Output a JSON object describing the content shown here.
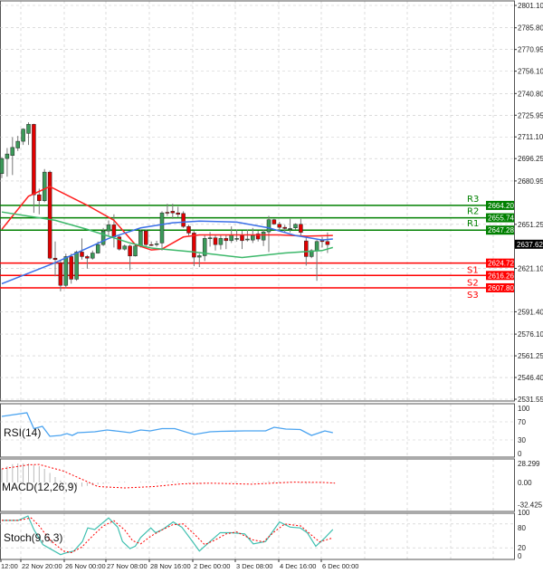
{
  "chart_data": [
    {
      "type": "candlestick",
      "panel": "price",
      "ylim": [
        2531.55,
        2801.1
      ],
      "y_ticks": [
        "2801.10",
        "2785.80",
        "2770.95",
        "2756.10",
        "2740.80",
        "2725.95",
        "2711.10",
        "2696.25",
        "2680.95",
        "2651.25",
        "2621.10",
        "2591.40",
        "2576.10",
        "2561.25",
        "2546.40",
        "2531.55"
      ],
      "grid": true,
      "candles_ohlc": [
        [
          2686.0,
          2697.3,
          2682.9,
          2696.3
        ],
        [
          2696.3,
          2703.5,
          2683.9,
          2699.4
        ],
        [
          2698.4,
          2710.8,
          2685.0,
          2703.9
        ],
        [
          2703.5,
          2711.8,
          2701.5,
          2708.1
        ],
        [
          2708.1,
          2717.0,
          2705.6,
          2716.4
        ],
        [
          2713.5,
          2721.1,
          2705.6,
          2719.7
        ],
        [
          2719.7,
          2720.1,
          2659.1,
          2671.5
        ],
        [
          2671.5,
          2675.7,
          2658.1,
          2667.4
        ],
        [
          2667.4,
          2689.1,
          2666.4,
          2687.0
        ],
        [
          2687.0,
          2688.1,
          2627.1,
          2628.1
        ],
        [
          2628.1,
          2639.5,
          2615.7,
          2627.1
        ],
        [
          2625.0,
          2626.1,
          2605.4,
          2609.5
        ],
        [
          2609.5,
          2631.2,
          2607.5,
          2629.2
        ],
        [
          2629.2,
          2631.2,
          2610.6,
          2613.7
        ],
        [
          2613.7,
          2633.3,
          2612.6,
          2632.3
        ],
        [
          2632.3,
          2641.6,
          2627.1,
          2629.2
        ],
        [
          2629.2,
          2630.2,
          2620.9,
          2628.1
        ],
        [
          2628.1,
          2633.3,
          2627.1,
          2631.6
        ],
        [
          2631.6,
          2639.5,
          2631.2,
          2637.4
        ],
        [
          2637.4,
          2648.8,
          2636.4,
          2646.7
        ],
        [
          2646.7,
          2653.9,
          2643.6,
          2650.9
        ],
        [
          2650.9,
          2658.1,
          2635.4,
          2642.6
        ],
        [
          2642.6,
          2643.6,
          2633.3,
          2634.3
        ],
        [
          2634.3,
          2637.4,
          2633.3,
          2636.4
        ],
        [
          2636.4,
          2637.4,
          2619.9,
          2629.6
        ],
        [
          2629.6,
          2637.4,
          2629.2,
          2636.4
        ],
        [
          2636.4,
          2647.8,
          2635.4,
          2646.7
        ],
        [
          2646.7,
          2647.8,
          2636.4,
          2637.4
        ],
        [
          2637.4,
          2639.5,
          2636.4,
          2637.0
        ],
        [
          2638.0,
          2640.0,
          2636.0,
          2638.0
        ],
        [
          2638.5,
          2660.2,
          2633.3,
          2659.1
        ],
        [
          2659.5,
          2665.3,
          2657.0,
          2659.1
        ],
        [
          2660.2,
          2665.3,
          2655.0,
          2659.1
        ],
        [
          2659.1,
          2663.3,
          2656.0,
          2658.1
        ],
        [
          2658.7,
          2660.2,
          2648.8,
          2649.8
        ],
        [
          2649.8,
          2650.9,
          2643.6,
          2645.3
        ],
        [
          2645.3,
          2646.7,
          2622.6,
          2628.8
        ],
        [
          2628.8,
          2631.2,
          2622.0,
          2629.8
        ],
        [
          2629.8,
          2643.6,
          2626.1,
          2641.6
        ],
        [
          2642.0,
          2646.0,
          2636.0,
          2642.0
        ],
        [
          2642.0,
          2643.6,
          2633.3,
          2637.4
        ],
        [
          2637.4,
          2643.6,
          2634.0,
          2641.6
        ],
        [
          2641.6,
          2643.6,
          2634.3,
          2640.1
        ],
        [
          2640.1,
          2649.8,
          2638.5,
          2644.0
        ],
        [
          2641.6,
          2647.8,
          2639.5,
          2641.6
        ],
        [
          2643.6,
          2646.7,
          2634.3,
          2640.1
        ],
        [
          2641.2,
          2647.8,
          2639.5,
          2641.2
        ],
        [
          2640.5,
          2648.8,
          2638.5,
          2643.6
        ],
        [
          2644.7,
          2646.7,
          2639.5,
          2641.2
        ],
        [
          2640.5,
          2647.8,
          2636.4,
          2646.1
        ],
        [
          2646.1,
          2657.0,
          2632.3,
          2654.4
        ],
        [
          2654.4,
          2655.0,
          2650.9,
          2651.5
        ],
        [
          2651.3,
          2653.0,
          2647.0,
          2649.2
        ],
        [
          2649.2,
          2650.9,
          2645.7,
          2648.4
        ],
        [
          2648.4,
          2655.0,
          2645.7,
          2648.4
        ],
        [
          2648.8,
          2651.9,
          2647.8,
          2651.3
        ],
        [
          2651.3,
          2655.0,
          2643.6,
          2645.7
        ],
        [
          2639.9,
          2642.6,
          2623.0,
          2629.2
        ],
        [
          2629.2,
          2634.3,
          2628.1,
          2633.3
        ],
        [
          2633.3,
          2640.5,
          2612.6,
          2639.5
        ],
        [
          2640.1,
          2642.6,
          2635.4,
          2639.5
        ],
        [
          2639.5,
          2645.7,
          2631.6,
          2637.4
        ]
      ],
      "moving_averages": [
        {
          "color": "#ff2020",
          "points": [
            [
              0,
              2647.8
            ],
            [
              5,
              2670.5
            ],
            [
              9,
              2677.1
            ],
            [
              16,
              2664.3
            ],
            [
              21,
              2654.0
            ],
            [
              25,
              2637.4
            ],
            [
              28,
              2633.7
            ],
            [
              30,
              2634.3
            ],
            [
              34,
              2642.6
            ],
            [
              37,
              2644.0
            ],
            [
              45,
              2644.0
            ],
            [
              52,
              2644.0
            ],
            [
              57,
              2643.2
            ],
            [
              62,
              2643.6
            ]
          ]
        },
        {
          "color": "#3a6fe8",
          "points": [
            [
              0,
              2610.6
            ],
            [
              10,
              2625.0
            ],
            [
              20,
              2641.6
            ],
            [
              26,
              2648.8
            ],
            [
              32,
              2652.3
            ],
            [
              37,
              2653.5
            ],
            [
              44,
              2652.8
            ],
            [
              50,
              2648.8
            ],
            [
              55,
              2643.6
            ],
            [
              60,
              2640.5
            ],
            [
              62,
              2641.2
            ]
          ]
        },
        {
          "color": "#3cb86a",
          "points": [
            [
              0,
              2659.7
            ],
            [
              10,
              2654.0
            ],
            [
              16,
              2647.8
            ],
            [
              24,
              2638.5
            ],
            [
              28,
              2635.0
            ],
            [
              36,
              2632.3
            ],
            [
              45,
              2628.5
            ],
            [
              53,
              2631.6
            ],
            [
              60,
              2633.3
            ],
            [
              62,
              2635.4
            ]
          ]
        }
      ],
      "levels": [
        {
          "label": "R3",
          "value": "2664.20",
          "color": "#008000"
        },
        {
          "label": "R2",
          "value": "2655.74",
          "color": "#008000"
        },
        {
          "label": "R1",
          "value": "2647.28",
          "color": "#008000"
        },
        {
          "label": "S1",
          "value": "2624.72",
          "color": "#ff0000"
        },
        {
          "label": "S2",
          "value": "2616.26",
          "color": "#ff0000"
        },
        {
          "label": "S3",
          "value": "2607.80",
          "color": "#ff0000"
        }
      ],
      "current_price": "2637.62",
      "x_ticks": [
        "12:00",
        "22 Nov 20:00",
        "26 Nov 00:00",
        "27 Nov 08:00",
        "28 Nov 16:00",
        "2 Dec 00:00",
        "3 Dec 08:00",
        "4 Dec 16:00",
        "6 Dec 00:00"
      ]
    },
    {
      "type": "line",
      "panel": "rsi",
      "title": "RSI(14)",
      "ylim": [
        0,
        100
      ],
      "y_ticks": [
        "100",
        "70",
        "30",
        "0"
      ],
      "color": "#4aa3f0",
      "points": [
        [
          0,
          82
        ],
        [
          4.7,
          90
        ],
        [
          6,
          55
        ],
        [
          7.6,
          60
        ],
        [
          9,
          38
        ],
        [
          11,
          40
        ],
        [
          12.2,
          44
        ],
        [
          13.2,
          40
        ],
        [
          14.2,
          46
        ],
        [
          17.4,
          48
        ],
        [
          19.7,
          52
        ],
        [
          22,
          49
        ],
        [
          24,
          46
        ],
        [
          26,
          52
        ],
        [
          27.8,
          50
        ],
        [
          30,
          55
        ],
        [
          32.4,
          55
        ],
        [
          36,
          42
        ],
        [
          39,
          48
        ],
        [
          41,
          49
        ],
        [
          45.5,
          50
        ],
        [
          49.4,
          50
        ],
        [
          51,
          58
        ],
        [
          53.2,
          54
        ],
        [
          55.9,
          53
        ],
        [
          58,
          40
        ],
        [
          60.5,
          50
        ],
        [
          62,
          46
        ]
      ]
    },
    {
      "type": "line",
      "panel": "macd",
      "title": "MACD(12,26,9)",
      "ylim": [
        -32.425,
        28.299
      ],
      "y_ticks": [
        "28.299",
        "0.00",
        "-32.425"
      ],
      "histogram": [
        20,
        24,
        27,
        28,
        28,
        28,
        26,
        24,
        20,
        14,
        8,
        3,
        -3,
        -5,
        -6,
        -6,
        -5,
        -4,
        -3,
        -2,
        -1,
        0,
        1,
        1,
        0,
        0,
        1,
        1,
        0,
        -1,
        1,
        2,
        2,
        1,
        0,
        -1,
        -2,
        -2,
        -1,
        0,
        0,
        0,
        0,
        1,
        1,
        0,
        0,
        1,
        1,
        1,
        2,
        2,
        1,
        1,
        1,
        0,
        -1,
        -2,
        -1,
        0,
        0,
        -1,
        -1
      ],
      "signal_color": "#ff0000",
      "signal": [
        [
          0,
          20
        ],
        [
          5,
          26
        ],
        [
          7,
          26.5
        ],
        [
          11.5,
          17
        ],
        [
          15.5,
          3
        ],
        [
          18,
          -6
        ],
        [
          23,
          -8
        ],
        [
          28.5,
          -6
        ],
        [
          33.7,
          -2
        ],
        [
          39,
          -1
        ],
        [
          46.8,
          -2.5
        ],
        [
          54.6,
          0.5
        ],
        [
          60.5,
          0
        ],
        [
          62.4,
          -1
        ]
      ]
    },
    {
      "type": "line",
      "panel": "stoch",
      "title": "Stoch(9,6,3)",
      "ylim": [
        0,
        100
      ],
      "y_ticks": [
        "100",
        "80",
        "20",
        "0"
      ],
      "main_color": "#40c0b0",
      "signal_color": "#ff0000",
      "main": [
        [
          0,
          89
        ],
        [
          3.1,
          89
        ],
        [
          4.9,
          100
        ],
        [
          6,
          66
        ],
        [
          7.7,
          28
        ],
        [
          11,
          3
        ],
        [
          12.2,
          8
        ],
        [
          13.5,
          12
        ],
        [
          15.1,
          36
        ],
        [
          16.1,
          70
        ],
        [
          17.4,
          66
        ],
        [
          20,
          95
        ],
        [
          21.7,
          72
        ],
        [
          22.6,
          36
        ],
        [
          24,
          18
        ],
        [
          25,
          24
        ],
        [
          26,
          46
        ],
        [
          27.9,
          70
        ],
        [
          28.8,
          58
        ],
        [
          30.1,
          66
        ],
        [
          32.1,
          85
        ],
        [
          33.7,
          72
        ],
        [
          35.7,
          36
        ],
        [
          37,
          12
        ],
        [
          39,
          36
        ],
        [
          40.9,
          58
        ],
        [
          42.9,
          58
        ],
        [
          45.5,
          55
        ],
        [
          47.1,
          30
        ],
        [
          49.4,
          36
        ],
        [
          52,
          85
        ],
        [
          54,
          72
        ],
        [
          55.9,
          70
        ],
        [
          57.2,
          58
        ],
        [
          58.8,
          24
        ],
        [
          60.5,
          45
        ],
        [
          62,
          66
        ]
      ],
      "signal": [
        [
          0,
          89
        ],
        [
          3,
          89
        ],
        [
          5.5,
          95
        ],
        [
          7,
          75
        ],
        [
          9,
          40
        ],
        [
          11.5,
          12
        ],
        [
          13,
          8
        ],
        [
          15,
          22
        ],
        [
          17,
          50
        ],
        [
          19,
          75
        ],
        [
          21,
          88
        ],
        [
          23,
          65
        ],
        [
          24.5,
          38
        ],
        [
          26,
          30
        ],
        [
          28,
          50
        ],
        [
          30,
          65
        ],
        [
          32,
          78
        ],
        [
          34,
          80
        ],
        [
          36,
          55
        ],
        [
          38,
          28
        ],
        [
          40,
          40
        ],
        [
          42,
          55
        ],
        [
          44,
          60
        ],
        [
          47,
          40
        ],
        [
          49,
          35
        ],
        [
          51,
          60
        ],
        [
          53,
          80
        ],
        [
          56,
          75
        ],
        [
          58,
          52
        ],
        [
          59.5,
          35
        ],
        [
          62,
          45
        ]
      ]
    }
  ]
}
